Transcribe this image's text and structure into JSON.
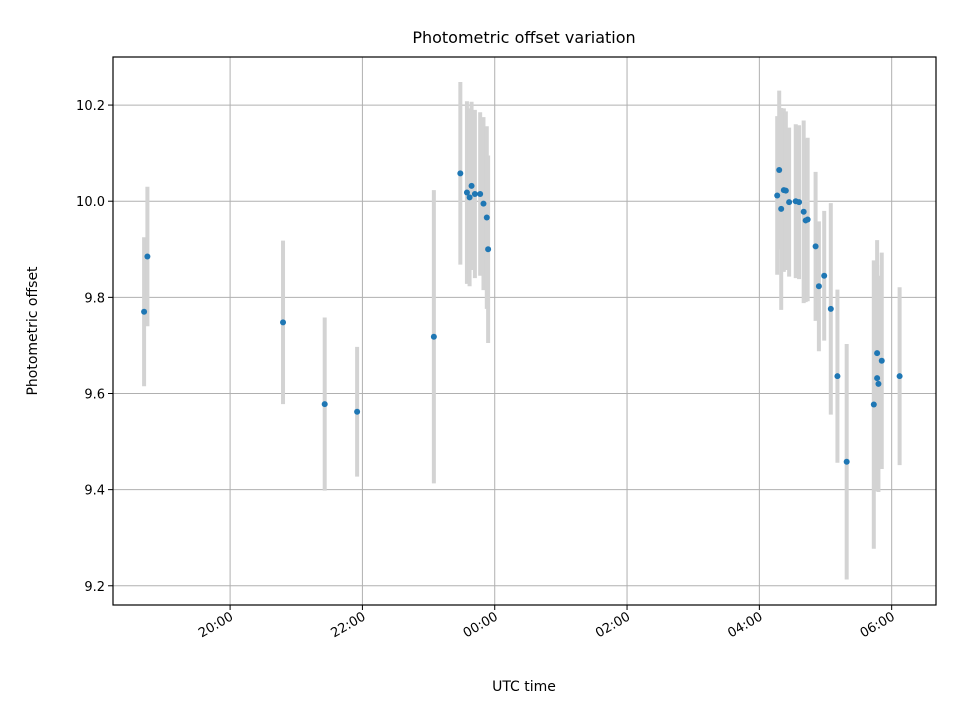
{
  "chart_data": {
    "type": "scatter",
    "title": "Photometric offset variation",
    "xlabel": "UTC time",
    "ylabel": "Photometric offset",
    "x_axis": {
      "kind": "time",
      "unit": "hours since 00:00 UTC",
      "xlim": [
        -5.77,
        6.67
      ],
      "ticks": [
        -4,
        -2,
        0,
        2,
        4,
        6
      ],
      "tick_labels": [
        "20:00",
        "22:00",
        "00:00",
        "02:00",
        "04:00",
        "06:00"
      ]
    },
    "y_axis": {
      "ylim": [
        9.16,
        10.3
      ],
      "ticks": [
        9.2,
        9.4,
        9.6,
        9.8,
        10.0,
        10.2
      ],
      "tick_labels": [
        "9.2",
        "9.4",
        "9.6",
        "9.8",
        "10.0",
        "10.2"
      ]
    },
    "grid": true,
    "colors": {
      "points": "#1f77b4",
      "errorbars": "#d3d3d3"
    },
    "points": [
      {
        "x": -5.3,
        "y": 9.77,
        "err": 0.155
      },
      {
        "x": -5.25,
        "y": 9.885,
        "err": 0.145
      },
      {
        "x": -3.2,
        "y": 9.748,
        "err": 0.17
      },
      {
        "x": -2.57,
        "y": 9.578,
        "err": 0.18
      },
      {
        "x": -2.08,
        "y": 9.562,
        "err": 0.135
      },
      {
        "x": -0.92,
        "y": 9.718,
        "err": 0.305
      },
      {
        "x": -0.52,
        "y": 10.058,
        "err": 0.19
      },
      {
        "x": -0.42,
        "y": 10.018,
        "err": 0.19
      },
      {
        "x": -0.38,
        "y": 10.008,
        "err": 0.185
      },
      {
        "x": -0.35,
        "y": 10.032,
        "err": 0.175
      },
      {
        "x": -0.3,
        "y": 10.015,
        "err": 0.175
      },
      {
        "x": -0.22,
        "y": 10.015,
        "err": 0.17
      },
      {
        "x": -0.17,
        "y": 9.995,
        "err": 0.18
      },
      {
        "x": -0.12,
        "y": 9.966,
        "err": 0.19
      },
      {
        "x": -0.1,
        "y": 9.9,
        "err": 0.195
      },
      {
        "x": 4.27,
        "y": 10.012,
        "err": 0.165
      },
      {
        "x": 4.3,
        "y": 10.065,
        "err": 0.165
      },
      {
        "x": 4.33,
        "y": 9.984,
        "err": 0.21
      },
      {
        "x": 4.37,
        "y": 10.023,
        "err": 0.17
      },
      {
        "x": 4.4,
        "y": 10.022,
        "err": 0.165
      },
      {
        "x": 4.45,
        "y": 9.998,
        "err": 0.155
      },
      {
        "x": 4.55,
        "y": 10.0,
        "err": 0.16
      },
      {
        "x": 4.6,
        "y": 9.998,
        "err": 0.16
      },
      {
        "x": 4.67,
        "y": 9.978,
        "err": 0.19
      },
      {
        "x": 4.7,
        "y": 9.96,
        "err": 0.17
      },
      {
        "x": 4.73,
        "y": 9.962,
        "err": 0.17
      },
      {
        "x": 4.85,
        "y": 9.906,
        "err": 0.155
      },
      {
        "x": 4.9,
        "y": 9.823,
        "err": 0.135
      },
      {
        "x": 4.98,
        "y": 9.845,
        "err": 0.135
      },
      {
        "x": 5.08,
        "y": 9.776,
        "err": 0.22
      },
      {
        "x": 5.18,
        "y": 9.636,
        "err": 0.18
      },
      {
        "x": 5.32,
        "y": 9.458,
        "err": 0.245
      },
      {
        "x": 5.73,
        "y": 9.577,
        "err": 0.3
      },
      {
        "x": 5.78,
        "y": 9.684,
        "err": 0.235
      },
      {
        "x": 5.78,
        "y": 9.632,
        "err": 0.235
      },
      {
        "x": 5.8,
        "y": 9.62,
        "err": 0.225
      },
      {
        "x": 5.85,
        "y": 9.668,
        "err": 0.225
      },
      {
        "x": 6.12,
        "y": 9.636,
        "err": 0.185
      }
    ]
  }
}
